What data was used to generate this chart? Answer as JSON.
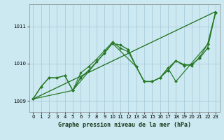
{
  "background_color": "#cce8f0",
  "grid_color": "#aaccdd",
  "title": "Graphe pression niveau de la mer (hPa)",
  "xlim": [
    -0.5,
    23.5
  ],
  "ylim": [
    1008.7,
    1011.6
  ],
  "yticks": [
    1009,
    1010,
    1011
  ],
  "xticks": [
    0,
    1,
    2,
    3,
    4,
    5,
    6,
    7,
    8,
    9,
    10,
    11,
    12,
    13,
    14,
    15,
    16,
    17,
    18,
    19,
    20,
    21,
    22,
    23
  ],
  "series": [
    {
      "name": "line1_straight",
      "x": [
        0,
        23
      ],
      "y": [
        1009.05,
        1011.4
      ],
      "marker": null,
      "markersize": 0,
      "linewidth": 0.9,
      "color": "#1a6e1a"
    },
    {
      "name": "line2_wavy_detailed",
      "x": [
        0,
        1,
        2,
        3,
        4,
        5,
        6,
        7,
        8,
        9,
        10,
        11,
        12,
        13,
        14,
        15,
        16,
        17,
        18,
        19,
        20,
        21,
        22,
        23
      ],
      "y": [
        1009.05,
        1009.38,
        1009.62,
        1009.62,
        1009.68,
        1009.28,
        1009.62,
        1009.82,
        1010.05,
        1010.28,
        1010.55,
        1010.5,
        1010.38,
        1009.92,
        1009.52,
        1009.52,
        1009.62,
        1009.82,
        1010.08,
        1009.95,
        1009.98,
        1010.15,
        1010.42,
        1011.38
      ],
      "marker": "D",
      "markersize": 2.0,
      "linewidth": 0.9,
      "color": "#1a6e1a"
    },
    {
      "name": "line3_wavy2",
      "x": [
        0,
        1,
        2,
        3,
        4,
        5,
        6,
        7,
        8,
        9,
        10,
        11,
        12,
        13,
        14,
        15,
        16,
        17,
        18,
        19,
        20,
        21,
        22,
        23
      ],
      "y": [
        1009.05,
        1009.38,
        1009.62,
        1009.62,
        1009.68,
        1009.28,
        1009.75,
        1009.92,
        1010.12,
        1010.35,
        1010.58,
        1010.42,
        1010.32,
        1009.92,
        1009.52,
        1009.52,
        1009.62,
        1009.88,
        1010.08,
        1009.98,
        1009.95,
        1010.18,
        1010.52,
        1011.38
      ],
      "marker": "D",
      "markersize": 2.0,
      "linewidth": 0.9,
      "color": "#2a7d2a"
    },
    {
      "name": "line4_sparse",
      "x": [
        0,
        5,
        10,
        13,
        14,
        15,
        16,
        17,
        18,
        22,
        23
      ],
      "y": [
        1009.05,
        1009.28,
        1010.55,
        1009.92,
        1009.52,
        1009.52,
        1009.62,
        1009.88,
        1009.52,
        1010.52,
        1011.38
      ],
      "marker": "D",
      "markersize": 2.0,
      "linewidth": 0.9,
      "color": "#2a7d2a"
    }
  ],
  "title_fontsize": 6.0,
  "tick_fontsize": 5.0,
  "fig_width": 3.2,
  "fig_height": 2.0,
  "dpi": 100
}
